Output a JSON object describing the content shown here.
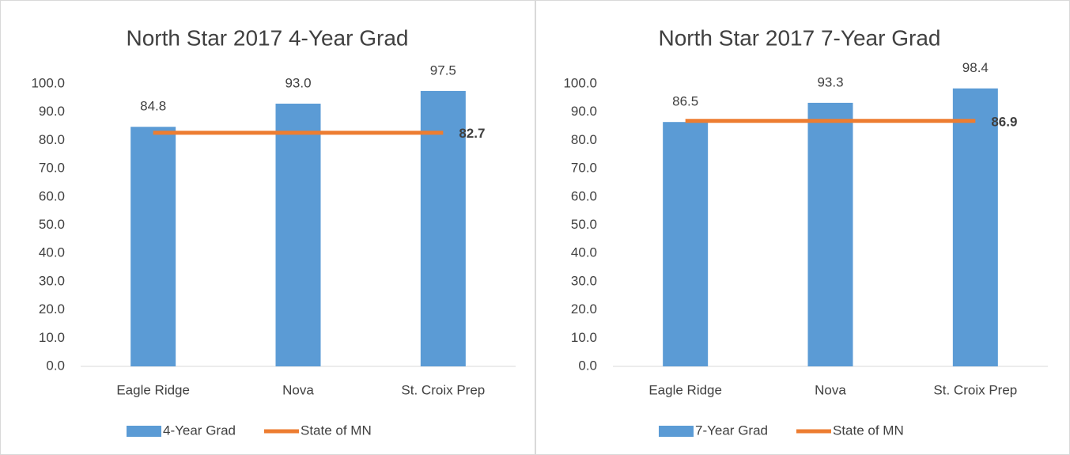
{
  "chart_data": [
    {
      "type": "bar",
      "title": "North Star 2017 4-Year Grad",
      "categories": [
        "Eagle Ridge",
        "Nova",
        "St. Croix Prep"
      ],
      "series": [
        {
          "name": "4-Year Grad",
          "type": "bar",
          "color": "#5b9bd5",
          "values": [
            84.8,
            93.0,
            97.5
          ],
          "value_labels": [
            "84.8",
            "93.0",
            "97.5"
          ]
        },
        {
          "name": "State of MN",
          "type": "line",
          "color": "#ed7d31",
          "values": [
            82.7,
            82.7,
            82.7
          ],
          "value_labels": [
            null,
            null,
            "82.7"
          ]
        }
      ],
      "ylim": [
        0,
        100
      ],
      "yticks": [
        {
          "value": 0,
          "label": "0.0"
        },
        {
          "value": 10,
          "label": "10.0"
        },
        {
          "value": 20,
          "label": "20.0"
        },
        {
          "value": 30,
          "label": "30.0"
        },
        {
          "value": 40,
          "label": "40.0"
        },
        {
          "value": 50,
          "label": "50.0"
        },
        {
          "value": 60,
          "label": "60.0"
        },
        {
          "value": 70,
          "label": "70.0"
        },
        {
          "value": 80,
          "label": "80.0"
        },
        {
          "value": 90,
          "label": "90.0"
        },
        {
          "value": 100,
          "label": "100.0"
        }
      ],
      "legend": "bottom"
    },
    {
      "type": "bar",
      "title": "North Star 2017 7-Year Grad",
      "categories": [
        "Eagle Ridge",
        "Nova",
        "St. Croix Prep"
      ],
      "series": [
        {
          "name": "7-Year Grad",
          "type": "bar",
          "color": "#5b9bd5",
          "values": [
            86.5,
            93.3,
            98.4
          ],
          "value_labels": [
            "86.5",
            "93.3",
            "98.4"
          ]
        },
        {
          "name": "State of MN",
          "type": "line",
          "color": "#ed7d31",
          "values": [
            86.9,
            86.9,
            86.9
          ],
          "value_labels": [
            null,
            null,
            "86.9"
          ]
        }
      ],
      "ylim": [
        0,
        100
      ],
      "yticks": [
        {
          "value": 0,
          "label": "0.0"
        },
        {
          "value": 10,
          "label": "10.0"
        },
        {
          "value": 20,
          "label": "20.0"
        },
        {
          "value": 30,
          "label": "30.0"
        },
        {
          "value": 40,
          "label": "40.0"
        },
        {
          "value": 50,
          "label": "50.0"
        },
        {
          "value": 60,
          "label": "60.0"
        },
        {
          "value": 70,
          "label": "70.0"
        },
        {
          "value": 80,
          "label": "80.0"
        },
        {
          "value": 90,
          "label": "90.0"
        },
        {
          "value": 100,
          "label": "100.0"
        }
      ],
      "legend": "bottom"
    }
  ]
}
